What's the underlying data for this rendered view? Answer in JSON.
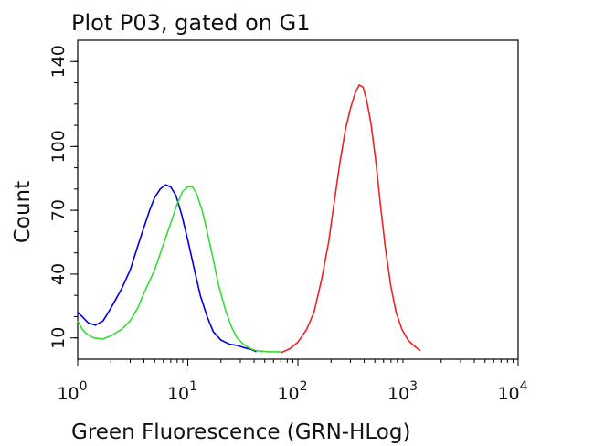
{
  "chart_data": {
    "type": "line",
    "title": "Plot P03, gated on G1",
    "xlabel": "Green Fluorescence (GRN-HLog)",
    "ylabel": "Count",
    "x_scale": "log",
    "xlim": [
      1,
      10000
    ],
    "ylim": [
      0,
      150
    ],
    "x_ticks": [
      {
        "base": "10",
        "exp": "0",
        "value": 1
      },
      {
        "base": "10",
        "exp": "1",
        "value": 10
      },
      {
        "base": "10",
        "exp": "2",
        "value": 100
      },
      {
        "base": "10",
        "exp": "3",
        "value": 1000
      },
      {
        "base": "10",
        "exp": "4",
        "value": 10000
      }
    ],
    "y_ticks": [
      {
        "label": "10",
        "value": 10
      },
      {
        "label": "40",
        "value": 40
      },
      {
        "label": "70",
        "value": 70
      },
      {
        "label": "100",
        "value": 100
      },
      {
        "label": "140",
        "value": 140
      }
    ],
    "grid": false,
    "series": [
      {
        "color": "#0000dd",
        "points": [
          [
            1.0,
            22
          ],
          [
            1.1,
            20
          ],
          [
            1.25,
            17
          ],
          [
            1.45,
            16
          ],
          [
            1.7,
            18
          ],
          [
            2.0,
            24
          ],
          [
            2.5,
            33
          ],
          [
            3.0,
            42
          ],
          [
            3.5,
            53
          ],
          [
            4.0,
            62
          ],
          [
            4.5,
            70
          ],
          [
            5.0,
            76
          ],
          [
            5.6,
            80
          ],
          [
            6.3,
            82
          ],
          [
            7.0,
            81
          ],
          [
            7.8,
            77
          ],
          [
            8.8,
            68
          ],
          [
            10,
            56
          ],
          [
            11.5,
            42
          ],
          [
            13,
            30
          ],
          [
            15,
            20
          ],
          [
            17,
            13
          ],
          [
            20,
            9
          ],
          [
            24,
            7
          ],
          [
            28,
            6.5
          ],
          [
            32,
            5.5
          ],
          [
            38,
            4.5
          ],
          [
            42,
            3.5
          ]
        ]
      },
      {
        "color": "#33dd33",
        "points": [
          [
            1.0,
            18
          ],
          [
            1.1,
            14
          ],
          [
            1.2,
            12
          ],
          [
            1.4,
            10
          ],
          [
            1.7,
            9.5
          ],
          [
            2.0,
            11
          ],
          [
            2.5,
            14
          ],
          [
            3.0,
            18
          ],
          [
            3.5,
            24
          ],
          [
            4.0,
            31
          ],
          [
            5.0,
            42
          ],
          [
            6.0,
            54
          ],
          [
            7.0,
            64
          ],
          [
            8.0,
            73
          ],
          [
            9.0,
            79
          ],
          [
            10,
            81
          ],
          [
            11,
            81
          ],
          [
            12,
            78
          ],
          [
            13.5,
            70
          ],
          [
            15,
            60
          ],
          [
            17,
            47
          ],
          [
            19,
            35
          ],
          [
            22,
            23
          ],
          [
            25,
            15
          ],
          [
            28,
            10
          ],
          [
            32,
            7
          ],
          [
            37,
            5
          ],
          [
            42,
            4
          ],
          [
            55,
            3.5
          ],
          [
            70,
            3.5
          ]
        ]
      },
      {
        "color": "#ee2222",
        "points": [
          [
            70,
            3
          ],
          [
            85,
            5
          ],
          [
            100,
            8
          ],
          [
            120,
            14
          ],
          [
            140,
            22
          ],
          [
            165,
            38
          ],
          [
            190,
            55
          ],
          [
            215,
            75
          ],
          [
            240,
            92
          ],
          [
            270,
            108
          ],
          [
            300,
            118
          ],
          [
            330,
            125
          ],
          [
            360,
            129
          ],
          [
            390,
            128
          ],
          [
            420,
            122
          ],
          [
            460,
            111
          ],
          [
            510,
            93
          ],
          [
            560,
            73
          ],
          [
            620,
            53
          ],
          [
            700,
            34
          ],
          [
            780,
            22
          ],
          [
            880,
            14
          ],
          [
            1000,
            9
          ],
          [
            1150,
            6
          ],
          [
            1300,
            4
          ]
        ]
      }
    ]
  }
}
